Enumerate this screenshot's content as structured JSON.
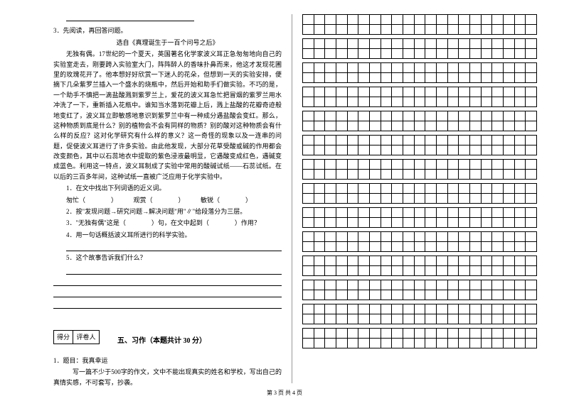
{
  "left": {
    "q3": "3．先阅读，再回答问题。",
    "source": "选自《真理诞生于一百个问号之后》",
    "p1": "无独有偶。17世纪的一个夏天，英国著名化学家波义耳正急匆匆地向自己的实验室走去，刚要跨入实验室大门，阵阵醉人的香味扑鼻而来，他这才发现花圃里的玫瑰花开了。他本想好好欣赏一下迷人的花朵，但想到一天的实验安排，便摘下几朵紫罗兰插入一个盛水的烧瓶中，然后开始和助手们做实验。不巧的是，一个助手不慎把一滴盐酸溅到紫罗兰上，爱花的波义耳急忙把冒烟的紫罗兰用水冲洗了一下，重新插入花瓶中。谁知当水落到花瓣上后，溅上盐酸的花瓣奇迹般地变红了，波义耳立即敏感地意识到紫罗兰中有一种成分遇盐酸会变红。那么，这种物质到底是什么？别的植物会不会有同样的物质？别的酸对这种物质会有什么样的反应？这对化学研究有什么样的意义？这一奇怪的现象以及一连串的问题，促使波义耳进行了许多实验。由此他发现，大部分花草受酸或碱的作用都会改变颜色，其中以石蕊地衣中提取的紫色浸液最明显，它遇酸变成红色，遇碱变成蓝色。利用这一特点，波义耳制成了实验中常用的酸碱试纸——石蕊试纸。在以后的三百多年间，这种试纸一直被广泛应用于化学实验中。",
    "sub1_label": "1．在文中找出下列词语的近义词。",
    "sub1_items": "匆忙（　　　　）　　　观赏（　　　　）　　　敏锐（　　　　）",
    "sub2": "2．按\"发现问题→研究问题→解决问题\"用\"∥\"给段落分为三层。",
    "sub3": "3．\"无独有偶\"这是（　　　　）句，在文中起到（　　　　）作用？",
    "sub4": "4．用一句话概括波义耳所进行的科学实验。",
    "sub5": "5．这个故事告诉我们什么？",
    "score_labels": [
      "得分",
      "评卷人"
    ],
    "section5_title": "五、习作（本题共计 30 分）",
    "essay_title": "1．题目：我真幸运",
    "essay_req": "写一篇不少于500字的作文，文中不能出现真实的姓名和学校，写出自己的真情实感，不可套写，抄袭。"
  },
  "grid": {
    "blocks": 14,
    "cols": 21,
    "rows_per_block": 2
  },
  "footer": "第 3 页  共 4 页"
}
